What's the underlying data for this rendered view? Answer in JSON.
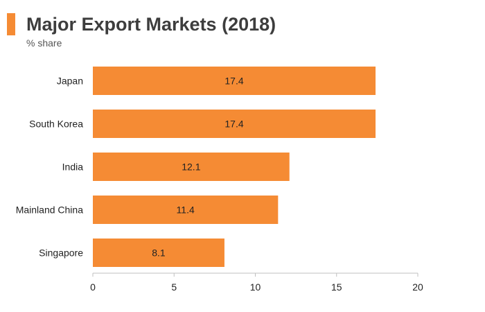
{
  "header": {
    "title": "Major Export Markets (2018)",
    "subtitle": "% share",
    "accent_color": "#f58b34"
  },
  "chart_data": {
    "type": "bar",
    "orientation": "horizontal",
    "title": "Major Export Markets (2018)",
    "subtitle": "% share",
    "xlabel": "",
    "ylabel": "",
    "categories": [
      "Japan",
      "South Korea",
      "India",
      "Mainland China",
      "Singapore"
    ],
    "values": [
      17.4,
      17.4,
      12.1,
      11.4,
      8.1
    ],
    "value_labels": [
      "17.4",
      "17.4",
      "12.1",
      "11.4",
      "8.1"
    ],
    "xlim": [
      0,
      20
    ],
    "xticks": [
      0,
      5,
      10,
      15,
      20
    ],
    "grid": false,
    "legend": "none",
    "bar_color": "#f58b34",
    "axis_color": "#bfbfbf",
    "label_color": "#222222"
  }
}
